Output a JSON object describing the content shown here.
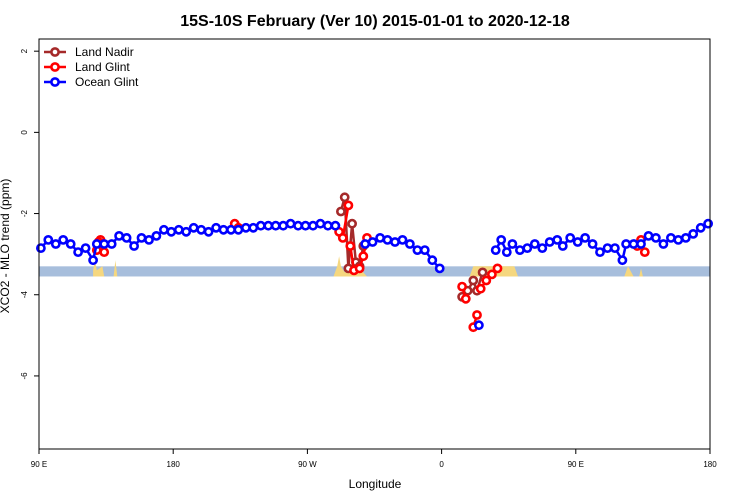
{
  "chart_data": {
    "type": "line",
    "title": "15S-10S February (Ver 10)   2015-01-01 to 2020-12-18",
    "xlabel": "Longitude",
    "ylabel": "XCO2 - MLO trend (ppm)",
    "xlim": [
      90,
      450
    ],
    "ylim": [
      -7.8,
      2.3
    ],
    "x_ticks": [
      {
        "value": 90,
        "label": "90 E"
      },
      {
        "value": 162,
        "label": "180"
      },
      {
        "value": 234,
        "label": "90 W"
      },
      {
        "value": 306,
        "label": "0"
      },
      {
        "value": 378,
        "label": "90 E"
      },
      {
        "value": 450,
        "label": "180"
      }
    ],
    "y_ticks": [
      {
        "value": 2,
        "label": "2"
      },
      {
        "value": 0,
        "label": "0"
      },
      {
        "value": -2,
        "label": "-2"
      },
      {
        "value": -4,
        "label": "-4"
      },
      {
        "value": -6,
        "label": "-6"
      }
    ],
    "grid": false,
    "legend_position": "top-left",
    "band": {
      "y_min": -3.55,
      "y_max": -3.3,
      "color": "#a7bedc"
    },
    "land_fill": {
      "color": "#f5d77f",
      "regions": [
        [
          [
            119,
            -3.55
          ],
          [
            119,
            -3.4
          ],
          [
            120,
            -3.15
          ],
          [
            121,
            -3.4
          ],
          [
            124,
            -3.3
          ],
          [
            125,
            -3.55
          ]
        ],
        [
          [
            130,
            -3.55
          ],
          [
            131,
            -3.15
          ],
          [
            132,
            -3.55
          ]
        ],
        [
          [
            248,
            -3.55
          ],
          [
            250,
            -3.3
          ],
          [
            251,
            -3.05
          ],
          [
            252,
            -3.3
          ],
          [
            254,
            -3.45
          ],
          [
            256,
            -3.3
          ],
          [
            258,
            -3.45
          ],
          [
            261,
            -3.3
          ],
          [
            263,
            -3.4
          ],
          [
            266,
            -3.55
          ]
        ],
        [
          [
            321,
            -3.55
          ],
          [
            323,
            -3.3
          ],
          [
            345,
            -3.3
          ],
          [
            347,
            -3.55
          ]
        ],
        [
          [
            404,
            -3.55
          ],
          [
            406,
            -3.3
          ],
          [
            409,
            -3.55
          ]
        ],
        [
          [
            412,
            -3.55
          ],
          [
            413,
            -3.35
          ],
          [
            414,
            -3.55
          ]
        ]
      ]
    },
    "series": [
      {
        "name": "Land Nadir",
        "color": "#a52a2a",
        "segments": [
          [
            [
              252,
              -1.95
            ],
            [
              254,
              -1.6
            ],
            [
              256,
              -3.35
            ],
            [
              258,
              -2.25
            ],
            [
              260,
              -3.2
            ],
            [
              262,
              -3.3
            ],
            [
              264,
              -2.8
            ]
          ],
          [
            [
              317,
              -4.05
            ],
            [
              320,
              -3.9
            ],
            [
              323,
              -3.65
            ],
            [
              325,
              -3.9
            ],
            [
              328,
              -3.45
            ]
          ]
        ]
      },
      {
        "name": "Land Glint",
        "color": "#ff0000",
        "segments": [
          [
            [
              121,
              -2.9
            ],
            [
              123,
              -2.65
            ],
            [
              125,
              -2.95
            ]
          ],
          [
            [
              122,
              -2.7
            ],
            [
              124,
              -2.75
            ]
          ],
          [
            [
              195,
              -2.25
            ],
            [
              197,
              -2.35
            ]
          ],
          [
            [
              251,
              -2.45
            ],
            [
              253,
              -2.6
            ],
            [
              256,
              -1.8
            ]
          ],
          [
            [
              257,
              -2.8
            ],
            [
              259,
              -3.4
            ],
            [
              262,
              -3.35
            ],
            [
              264,
              -3.05
            ],
            [
              266,
              -2.6
            ]
          ],
          [
            [
              317,
              -3.8
            ],
            [
              319,
              -4.1
            ]
          ],
          [
            [
              323,
              -4.8
            ],
            [
              325,
              -4.5
            ]
          ],
          [
            [
              327,
              -3.85
            ],
            [
              330,
              -3.65
            ],
            [
              333,
              -3.5
            ],
            [
              336,
              -3.35
            ]
          ],
          [
            [
              411,
              -2.8
            ],
            [
              413,
              -2.65
            ],
            [
              415,
              -2.95
            ]
          ]
        ]
      },
      {
        "name": "Ocean Glint",
        "color": "#0000ff",
        "segments": [
          [
            [
              91,
              -2.85
            ],
            [
              95,
              -2.65
            ],
            [
              99,
              -2.75
            ],
            [
              103,
              -2.65
            ],
            [
              107,
              -2.75
            ],
            [
              111,
              -2.95
            ],
            [
              115,
              -2.85
            ],
            [
              119,
              -3.15
            ],
            [
              121,
              -2.75
            ],
            [
              125,
              -2.75
            ],
            [
              129,
              -2.75
            ],
            [
              133,
              -2.55
            ],
            [
              137,
              -2.6
            ],
            [
              141,
              -2.8
            ],
            [
              145,
              -2.6
            ],
            [
              149,
              -2.65
            ],
            [
              153,
              -2.55
            ],
            [
              157,
              -2.4
            ],
            [
              161,
              -2.45
            ],
            [
              165,
              -2.4
            ],
            [
              169,
              -2.45
            ],
            [
              173,
              -2.35
            ],
            [
              177,
              -2.4
            ],
            [
              181,
              -2.45
            ],
            [
              185,
              -2.35
            ],
            [
              189,
              -2.4
            ],
            [
              193,
              -2.4
            ],
            [
              197,
              -2.4
            ],
            [
              201,
              -2.35
            ],
            [
              205,
              -2.35
            ],
            [
              209,
              -2.3
            ],
            [
              213,
              -2.3
            ],
            [
              217,
              -2.3
            ],
            [
              221,
              -2.3
            ],
            [
              225,
              -2.25
            ],
            [
              229,
              -2.3
            ],
            [
              233,
              -2.3
            ],
            [
              237,
              -2.3
            ],
            [
              241,
              -2.25
            ],
            [
              245,
              -2.3
            ],
            [
              249,
              -2.3
            ]
          ],
          [
            [
              265,
              -2.75
            ],
            [
              269,
              -2.7
            ],
            [
              273,
              -2.6
            ],
            [
              277,
              -2.65
            ],
            [
              281,
              -2.7
            ],
            [
              285,
              -2.65
            ],
            [
              289,
              -2.75
            ],
            [
              293,
              -2.9
            ],
            [
              297,
              -2.9
            ],
            [
              301,
              -3.15
            ],
            [
              305,
              -3.35
            ]
          ],
          [
            [
              326,
              -4.75
            ]
          ],
          [
            [
              335,
              -2.9
            ],
            [
              338,
              -2.65
            ],
            [
              341,
              -2.95
            ],
            [
              344,
              -2.75
            ],
            [
              348,
              -2.9
            ],
            [
              352,
              -2.85
            ],
            [
              356,
              -2.75
            ],
            [
              360,
              -2.85
            ],
            [
              364,
              -2.7
            ],
            [
              368,
              -2.65
            ],
            [
              371,
              -2.8
            ],
            [
              375,
              -2.6
            ],
            [
              379,
              -2.7
            ],
            [
              383,
              -2.6
            ],
            [
              387,
              -2.75
            ],
            [
              391,
              -2.95
            ],
            [
              395,
              -2.85
            ],
            [
              399,
              -2.85
            ],
            [
              403,
              -3.15
            ],
            [
              405,
              -2.75
            ],
            [
              409,
              -2.75
            ],
            [
              413,
              -2.75
            ],
            [
              417,
              -2.55
            ],
            [
              421,
              -2.6
            ],
            [
              425,
              -2.75
            ],
            [
              429,
              -2.6
            ],
            [
              433,
              -2.65
            ],
            [
              437,
              -2.6
            ],
            [
              441,
              -2.5
            ],
            [
              445,
              -2.35
            ],
            [
              449,
              -2.25
            ]
          ]
        ]
      }
    ]
  }
}
